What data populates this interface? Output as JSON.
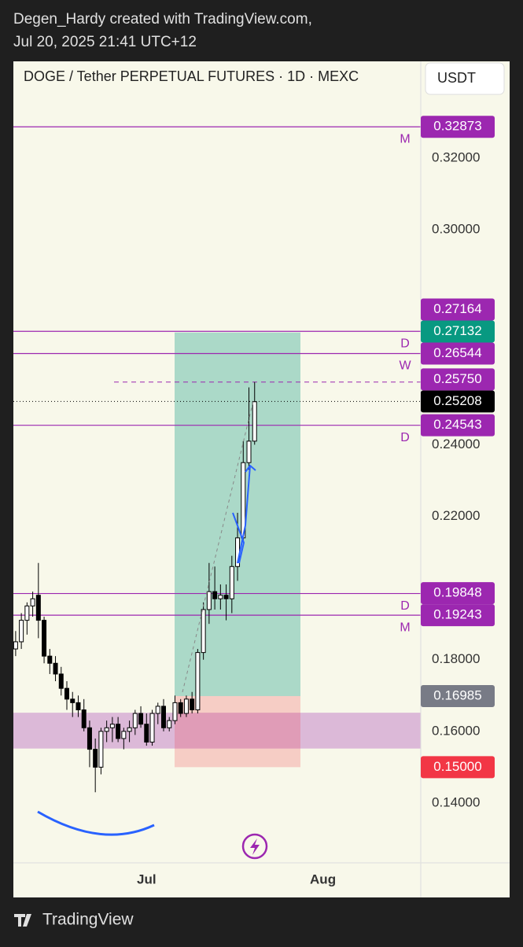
{
  "header": {
    "author_line": "Degen_Hardy created with TradingView.com,",
    "date_line": "Jul 20, 2025 21:41 UTC+12"
  },
  "chart_data": {
    "type": "candlestick",
    "title": "DOGE / Tether PERPETUAL FUTURES · 1D · MEXC",
    "currency": "USDT",
    "ohlc": [
      [
        0.183,
        0.188,
        0.181,
        0.185
      ],
      [
        0.185,
        0.193,
        0.183,
        0.191
      ],
      [
        0.191,
        0.196,
        0.187,
        0.195
      ],
      [
        0.195,
        0.199,
        0.192,
        0.197
      ],
      [
        0.198,
        0.207,
        0.186,
        0.191
      ],
      [
        0.191,
        0.192,
        0.179,
        0.181
      ],
      [
        0.181,
        0.183,
        0.176,
        0.179
      ],
      [
        0.179,
        0.181,
        0.174,
        0.176
      ],
      [
        0.176,
        0.178,
        0.17,
        0.172
      ],
      [
        0.172,
        0.174,
        0.166,
        0.169
      ],
      [
        0.169,
        0.171,
        0.164,
        0.168
      ],
      [
        0.168,
        0.17,
        0.164,
        0.166
      ],
      [
        0.166,
        0.169,
        0.16,
        0.161
      ],
      [
        0.161,
        0.163,
        0.15,
        0.155
      ],
      [
        0.155,
        0.158,
        0.143,
        0.15
      ],
      [
        0.15,
        0.161,
        0.148,
        0.16
      ],
      [
        0.16,
        0.163,
        0.157,
        0.161
      ],
      [
        0.161,
        0.164,
        0.157,
        0.162
      ],
      [
        0.162,
        0.164,
        0.157,
        0.158
      ],
      [
        0.158,
        0.161,
        0.155,
        0.16
      ],
      [
        0.16,
        0.163,
        0.157,
        0.161
      ],
      [
        0.161,
        0.166,
        0.159,
        0.165
      ],
      [
        0.165,
        0.167,
        0.161,
        0.162
      ],
      [
        0.162,
        0.165,
        0.156,
        0.157
      ],
      [
        0.157,
        0.166,
        0.156,
        0.165
      ],
      [
        0.165,
        0.168,
        0.162,
        0.167
      ],
      [
        0.167,
        0.169,
        0.16,
        0.161
      ],
      [
        0.161,
        0.164,
        0.16,
        0.163
      ],
      [
        0.163,
        0.17,
        0.162,
        0.168
      ],
      [
        0.168,
        0.169,
        0.164,
        0.165
      ],
      [
        0.165,
        0.17,
        0.164,
        0.169
      ],
      [
        0.169,
        0.171,
        0.165,
        0.166
      ],
      [
        0.166,
        0.183,
        0.165,
        0.182
      ],
      [
        0.182,
        0.196,
        0.18,
        0.194
      ],
      [
        0.194,
        0.207,
        0.19,
        0.199
      ],
      [
        0.199,
        0.206,
        0.194,
        0.197
      ],
      [
        0.197,
        0.201,
        0.194,
        0.198
      ],
      [
        0.198,
        0.201,
        0.191,
        0.197
      ],
      [
        0.197,
        0.209,
        0.193,
        0.206
      ],
      [
        0.206,
        0.221,
        0.202,
        0.214
      ],
      [
        0.214,
        0.241,
        0.213,
        0.235
      ],
      [
        0.235,
        0.256,
        0.233,
        0.241
      ],
      [
        0.241,
        0.2575,
        0.24,
        0.252
      ]
    ],
    "xlim": [
      -0.4,
      71.2
    ],
    "xticks": [
      {
        "value": 23,
        "label": "Jul"
      },
      {
        "value": 54,
        "label": "Aug"
      }
    ],
    "ylim": [
      0.1233,
      0.347
    ],
    "yticks": [
      {
        "value": 0.32,
        "label": "0.32000"
      },
      {
        "value": 0.3,
        "label": "0.30000"
      },
      {
        "value": 0.24,
        "label": "0.24000"
      },
      {
        "value": 0.22,
        "label": "0.22000"
      },
      {
        "value": 0.18,
        "label": "0.18000"
      },
      {
        "value": 0.16,
        "label": "0.16000"
      },
      {
        "value": 0.14,
        "label": "0.14000"
      }
    ],
    "levels": [
      {
        "value": 0.32873,
        "label": "0.32873",
        "tag": "M"
      },
      {
        "value": 0.27164,
        "label": "0.27164",
        "tag": "D"
      },
      {
        "value": 0.26544,
        "label": "0.26544",
        "tag": "W"
      },
      {
        "value": 0.24543,
        "label": "0.24543",
        "tag": "D"
      },
      {
        "value": 0.19848,
        "label": "0.19848",
        "tag": "D"
      },
      {
        "value": 0.19243,
        "label": "0.19243",
        "tag": "M"
      }
    ],
    "alert": {
      "value": 0.2575,
      "label": "0.25750"
    },
    "last_price": {
      "value": 0.25208,
      "label": "0.25208"
    },
    "position": {
      "target": {
        "value": 0.27132,
        "label": "0.27132"
      },
      "entry": {
        "value": 0.16985,
        "label": "0.16985"
      },
      "stop": {
        "value": 0.15,
        "label": "0.15000"
      }
    },
    "zone": [
      0.1552,
      0.1652
    ]
  },
  "footer": {
    "brand": "TradingView"
  }
}
